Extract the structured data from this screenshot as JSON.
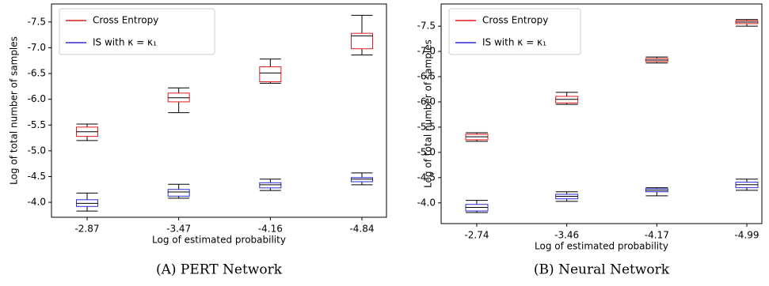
{
  "chart_data": [
    {
      "type": "box",
      "caption": "(A) PERT Network",
      "xlabel": "Log of estimated probability",
      "ylabel": "Log of total number of samples",
      "categories": [
        "-2.87",
        "-3.47",
        "-4.16",
        "-4.84"
      ],
      "ylim": [
        -3.71,
        -7.85
      ],
      "yticks": [
        {
          "value": -4,
          "label": "-4.0"
        },
        -4.5,
        {
          "value": -5,
          "label": "-5.0"
        },
        -5.5,
        {
          "value": -6,
          "label": "-6.0"
        },
        -6.5,
        {
          "value": -7,
          "label": "-7.0"
        },
        -7.5
      ],
      "legend": "upper left",
      "series": [
        {
          "name": "Cross Entropy",
          "color": "#e41a1c",
          "whisker_low": [
            -5.2,
            -5.74,
            -6.31,
            -6.86
          ],
          "q1": [
            -5.28,
            -5.95,
            -6.34,
            -6.98
          ],
          "median": [
            -5.37,
            -6.03,
            -6.51,
            -7.23
          ],
          "q3": [
            -5.46,
            -6.12,
            -6.63,
            -7.28
          ],
          "whisker_high": [
            -5.52,
            -6.22,
            -6.78,
            -7.63
          ]
        },
        {
          "name": "IS with κ = κ₁",
          "color": "#2b2bd6",
          "whisker_low": [
            -3.83,
            -4.08,
            -4.23,
            -4.34
          ],
          "q1": [
            -3.92,
            -4.12,
            -4.28,
            -4.4
          ],
          "median": [
            -3.98,
            -4.2,
            -4.34,
            -4.45
          ],
          "q3": [
            -4.05,
            -4.25,
            -4.38,
            -4.48
          ],
          "whisker_high": [
            -4.18,
            -4.35,
            -4.45,
            -4.57
          ]
        }
      ]
    },
    {
      "type": "box",
      "caption": "(B) Neural Network",
      "xlabel": "Log of estimated probability",
      "ylabel": "Log of total number of samples",
      "categories": [
        "-2.74",
        "-3.46",
        "-4.17",
        "-4.99"
      ],
      "ylim": [
        -3.59,
        -7.94
      ],
      "yticks": [
        {
          "value": -4,
          "label": "-4.0"
        },
        -4.5,
        {
          "value": -5,
          "label": "-5.0"
        },
        -5.5,
        {
          "value": -6,
          "label": "-6.0"
        },
        -6.5,
        {
          "value": -7,
          "label": "-7.0"
        },
        -7.5
      ],
      "legend": "upper left",
      "series": [
        {
          "name": "Cross Entropy",
          "color": "#e41a1c",
          "whisker_low": [
            -5.22,
            -5.95,
            -6.77,
            -7.5
          ],
          "q1": [
            -5.25,
            -5.98,
            -6.8,
            -7.55
          ],
          "median": [
            -5.31,
            -6.05,
            -6.83,
            -7.58
          ],
          "q3": [
            -5.36,
            -6.11,
            -6.86,
            -7.61
          ],
          "whisker_high": [
            -5.39,
            -6.19,
            -6.89,
            -7.63
          ]
        },
        {
          "name": "IS with κ = κ₁",
          "color": "#2b2bd6",
          "whisker_low": [
            -3.81,
            -4.03,
            -4.14,
            -4.25
          ],
          "q1": [
            -3.84,
            -4.08,
            -4.22,
            -4.3
          ],
          "median": [
            -3.91,
            -4.13,
            -4.25,
            -4.36
          ],
          "q3": [
            -3.97,
            -4.17,
            -4.28,
            -4.41
          ],
          "whisker_high": [
            -4.05,
            -4.22,
            -4.3,
            -4.47
          ]
        }
      ]
    }
  ]
}
